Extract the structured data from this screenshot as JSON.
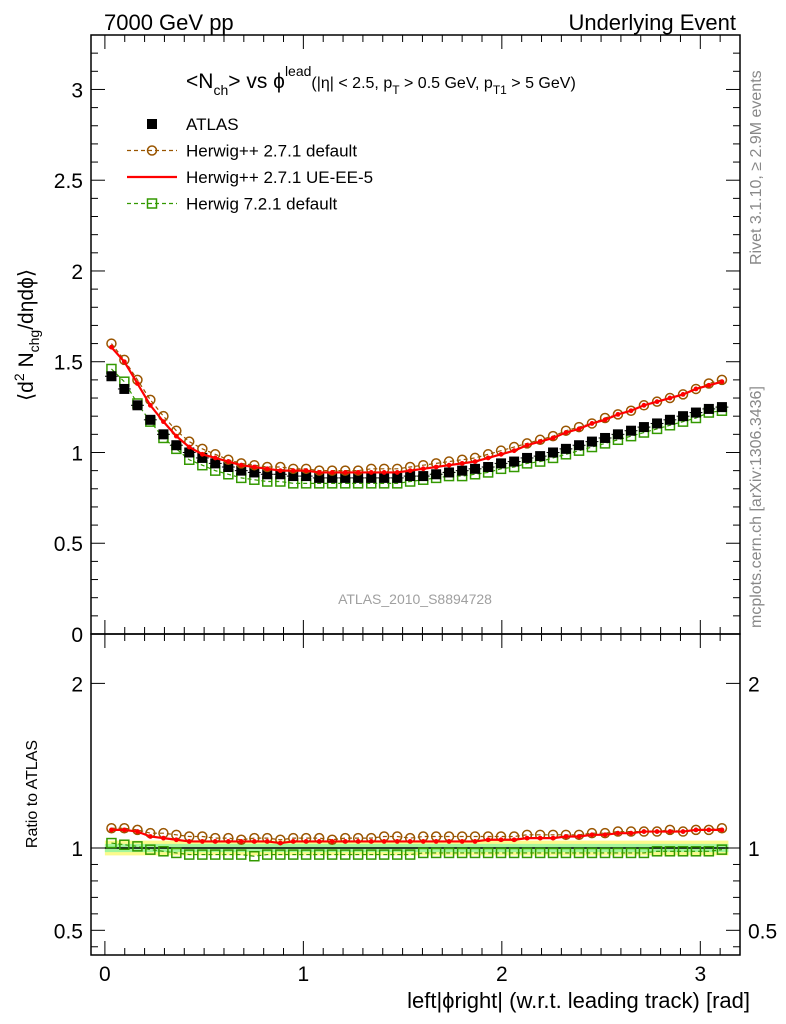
{
  "header": {
    "left": "7000 GeV pp",
    "right": "Underlying Event"
  },
  "side_labels": {
    "rivet": "Rivet 3.1.10, ≥ 2.9M events",
    "mcplots": "mcplots.cern.ch [arXiv:1306.3436]"
  },
  "watermark": "ATLAS_2010_S8894728",
  "colors": {
    "atlas": "#000000",
    "herwig_pp_default": "#995500",
    "herwig_pp_ue": "#ff0000",
    "herwig_72": "#339900",
    "band_inner": "#a3f59c",
    "band_outer": "#fbfa8c"
  },
  "chart_data": [
    {
      "type": "scatter",
      "panel": "main",
      "title": {
        "part1": "<N",
        "part1_sub": "ch",
        "part2": "> vs ",
        "part3": "ϕ",
        "part3_sup": "lead",
        "cut1": "(|η| < 2.5, p",
        "cut1_sub": "T",
        "cut2": " > 0.5 GeV, p",
        "cut2_sub": "T1",
        "cut3": " > 5 GeV)"
      },
      "ylabel": {
        "a": "⟨d",
        "a_sup": "2",
        "b": " N",
        "b_sub": "chg",
        "c": "/dηdϕ⟩"
      },
      "ylim": [
        0,
        3.3
      ],
      "xlim": [
        -0.07,
        3.2
      ],
      "yticks": [
        {
          "v": 0,
          "label": "0"
        },
        {
          "v": 0.5,
          "label": "0.5"
        },
        {
          "v": 1,
          "label": "1"
        },
        {
          "v": 1.5,
          "label": "1.5"
        },
        {
          "v": 2,
          "label": "2"
        },
        {
          "v": 2.5,
          "label": "2.5"
        },
        {
          "v": 3,
          "label": "3"
        }
      ],
      "legend": {
        "position": "top-left",
        "entries": [
          {
            "key": "atlas",
            "label": "ATLAS"
          },
          {
            "key": "herwig_pp_default",
            "label": "Herwig++ 2.7.1 default"
          },
          {
            "key": "herwig_pp_ue",
            "label": "Herwig++ 2.7.1 UE-EE-5"
          },
          {
            "key": "herwig_72",
            "label": "Herwig 7.2.1 default"
          }
        ]
      },
      "x": [
        0.033,
        0.098,
        0.164,
        0.229,
        0.295,
        0.36,
        0.425,
        0.491,
        0.556,
        0.622,
        0.687,
        0.753,
        0.818,
        0.884,
        0.949,
        1.014,
        1.08,
        1.145,
        1.211,
        1.276,
        1.342,
        1.407,
        1.473,
        1.538,
        1.604,
        1.669,
        1.734,
        1.8,
        1.865,
        1.931,
        1.996,
        2.062,
        2.127,
        2.193,
        2.258,
        2.323,
        2.389,
        2.454,
        2.52,
        2.585,
        2.651,
        2.716,
        2.782,
        2.847,
        2.913,
        2.978,
        3.043,
        3.109
      ],
      "series": [
        {
          "key": "atlas",
          "name": "ATLAS",
          "values": [
            1.42,
            1.35,
            1.26,
            1.18,
            1.1,
            1.04,
            1.0,
            0.97,
            0.94,
            0.92,
            0.9,
            0.89,
            0.88,
            0.88,
            0.87,
            0.87,
            0.86,
            0.86,
            0.86,
            0.86,
            0.86,
            0.86,
            0.86,
            0.87,
            0.87,
            0.88,
            0.89,
            0.9,
            0.91,
            0.92,
            0.94,
            0.95,
            0.97,
            0.98,
            1.0,
            1.02,
            1.04,
            1.06,
            1.08,
            1.1,
            1.12,
            1.14,
            1.16,
            1.18,
            1.2,
            1.22,
            1.24,
            1.25
          ]
        },
        {
          "key": "herwig_pp_default",
          "name": "Herwig++ 2.7.1 default",
          "values": [
            1.6,
            1.51,
            1.4,
            1.29,
            1.2,
            1.12,
            1.06,
            1.02,
            0.99,
            0.96,
            0.94,
            0.93,
            0.92,
            0.92,
            0.91,
            0.91,
            0.9,
            0.9,
            0.9,
            0.9,
            0.91,
            0.91,
            0.91,
            0.92,
            0.93,
            0.94,
            0.95,
            0.96,
            0.97,
            0.99,
            1.01,
            1.03,
            1.05,
            1.07,
            1.09,
            1.12,
            1.14,
            1.16,
            1.19,
            1.21,
            1.23,
            1.26,
            1.28,
            1.3,
            1.32,
            1.35,
            1.38,
            1.4
          ]
        },
        {
          "key": "herwig_pp_ue",
          "name": "Herwig++ 2.7.1 UE-EE-5",
          "values": [
            1.58,
            1.5,
            1.38,
            1.26,
            1.17,
            1.09,
            1.03,
            0.99,
            0.97,
            0.95,
            0.93,
            0.92,
            0.91,
            0.9,
            0.9,
            0.9,
            0.89,
            0.89,
            0.89,
            0.89,
            0.89,
            0.89,
            0.89,
            0.9,
            0.91,
            0.92,
            0.93,
            0.94,
            0.95,
            0.97,
            0.99,
            1.01,
            1.04,
            1.06,
            1.08,
            1.11,
            1.13,
            1.16,
            1.18,
            1.21,
            1.23,
            1.26,
            1.28,
            1.3,
            1.32,
            1.35,
            1.37,
            1.39
          ]
        },
        {
          "key": "herwig_72",
          "name": "Herwig 7.2.1 default",
          "values": [
            1.46,
            1.39,
            1.27,
            1.17,
            1.08,
            1.02,
            0.96,
            0.93,
            0.9,
            0.88,
            0.86,
            0.85,
            0.84,
            0.84,
            0.83,
            0.83,
            0.83,
            0.83,
            0.83,
            0.83,
            0.83,
            0.83,
            0.83,
            0.84,
            0.85,
            0.86,
            0.87,
            0.87,
            0.88,
            0.89,
            0.91,
            0.92,
            0.94,
            0.95,
            0.97,
            0.99,
            1.01,
            1.03,
            1.05,
            1.07,
            1.09,
            1.11,
            1.13,
            1.15,
            1.17,
            1.19,
            1.22,
            1.23
          ]
        }
      ]
    },
    {
      "type": "scatter",
      "panel": "ratio",
      "ylabel": "Ratio to ATLAS",
      "xlabel": "left|ϕright| (w.r.t. leading track) [rad]",
      "ylim": [
        0.35,
        2.3
      ],
      "xlim": [
        -0.07,
        3.2
      ],
      "yticks": [
        {
          "v": 0.5,
          "label": "0.5"
        },
        {
          "v": 1,
          "label": "1"
        },
        {
          "v": 2,
          "label": "2"
        }
      ],
      "xticks": [
        {
          "v": 0,
          "label": "0"
        },
        {
          "v": 1,
          "label": "1"
        },
        {
          "v": 2,
          "label": "2"
        },
        {
          "v": 3,
          "label": "3"
        }
      ],
      "band": {
        "inner": 0.025,
        "outer": 0.045
      },
      "series": [
        {
          "key": "herwig_pp_default",
          "name": "Herwig++ 2.7.1 default",
          "values": [
            1.12,
            1.12,
            1.11,
            1.09,
            1.09,
            1.08,
            1.07,
            1.07,
            1.06,
            1.06,
            1.05,
            1.06,
            1.06,
            1.05,
            1.06,
            1.06,
            1.06,
            1.05,
            1.06,
            1.06,
            1.06,
            1.07,
            1.07,
            1.06,
            1.07,
            1.07,
            1.07,
            1.07,
            1.07,
            1.07,
            1.07,
            1.07,
            1.08,
            1.08,
            1.08,
            1.08,
            1.08,
            1.09,
            1.09,
            1.1,
            1.1,
            1.1,
            1.1,
            1.11,
            1.1,
            1.11,
            1.11,
            1.12
          ]
        },
        {
          "key": "herwig_pp_ue",
          "name": "Herwig++ 2.7.1 UE-EE-5",
          "values": [
            1.11,
            1.11,
            1.1,
            1.07,
            1.06,
            1.05,
            1.04,
            1.04,
            1.04,
            1.04,
            1.04,
            1.04,
            1.04,
            1.03,
            1.04,
            1.04,
            1.04,
            1.04,
            1.04,
            1.04,
            1.04,
            1.04,
            1.04,
            1.04,
            1.04,
            1.04,
            1.04,
            1.04,
            1.04,
            1.05,
            1.05,
            1.05,
            1.06,
            1.06,
            1.06,
            1.07,
            1.07,
            1.08,
            1.08,
            1.09,
            1.09,
            1.1,
            1.1,
            1.1,
            1.1,
            1.11,
            1.11,
            1.11
          ]
        },
        {
          "key": "herwig_72",
          "name": "Herwig 7.2.1 default",
          "values": [
            1.03,
            1.02,
            1.01,
            0.99,
            0.98,
            0.97,
            0.96,
            0.96,
            0.96,
            0.96,
            0.96,
            0.95,
            0.96,
            0.96,
            0.96,
            0.96,
            0.96,
            0.96,
            0.96,
            0.96,
            0.96,
            0.96,
            0.96,
            0.96,
            0.97,
            0.97,
            0.97,
            0.97,
            0.97,
            0.97,
            0.97,
            0.97,
            0.97,
            0.97,
            0.97,
            0.97,
            0.97,
            0.97,
            0.97,
            0.97,
            0.97,
            0.97,
            0.98,
            0.98,
            0.98,
            0.98,
            0.98,
            0.99
          ]
        }
      ]
    }
  ]
}
